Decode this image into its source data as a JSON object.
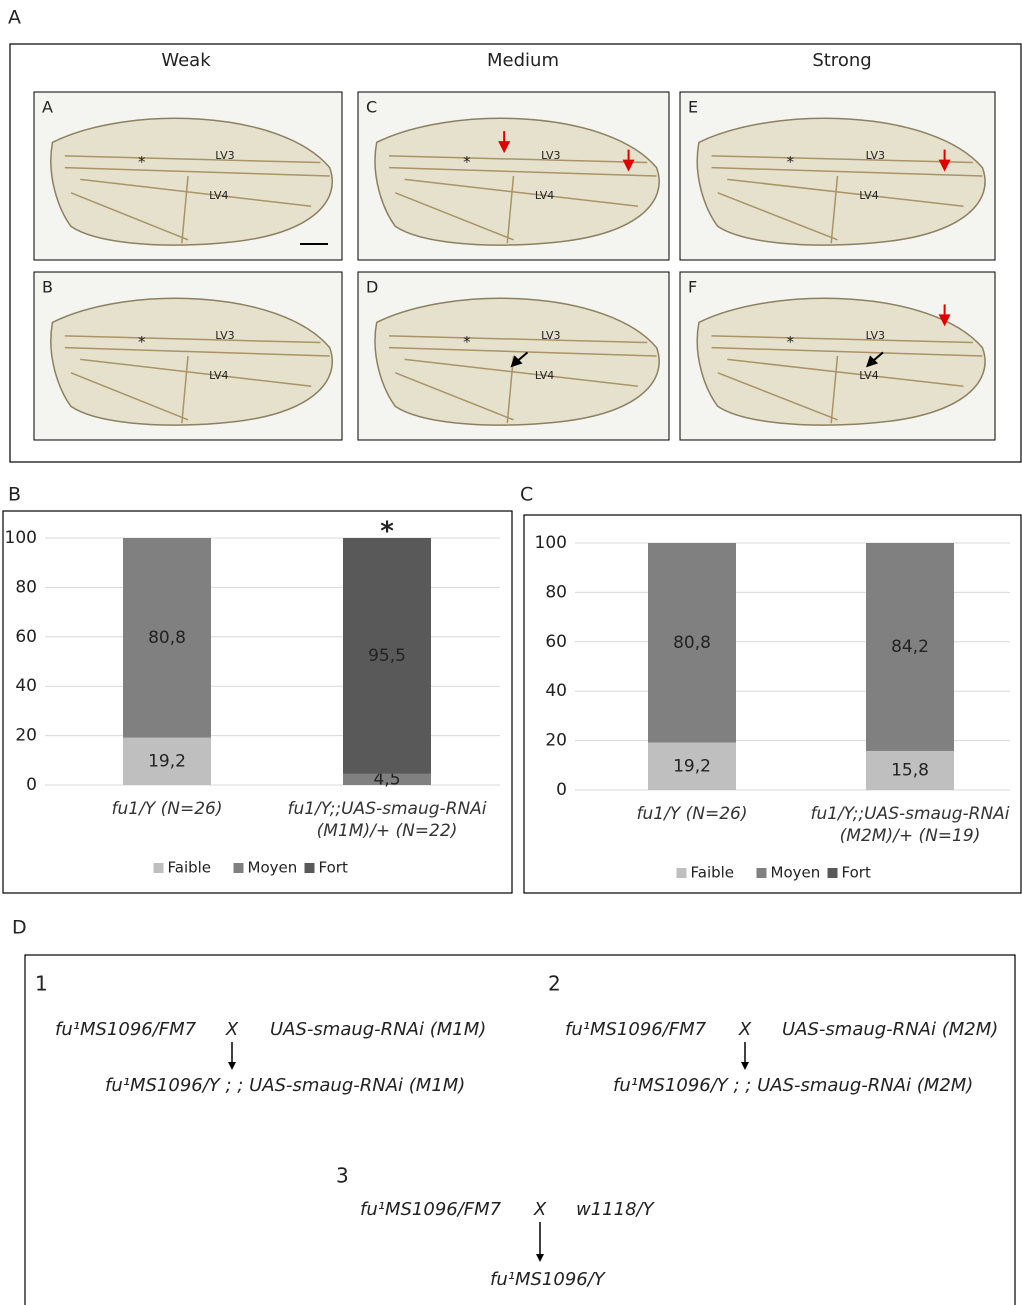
{
  "panel_labels": [
    "A",
    "B",
    "C",
    "D"
  ],
  "panel_a": {
    "columns": [
      "Weak",
      "Medium",
      "Strong"
    ],
    "images": [
      {
        "letter": "A",
        "marker": "*",
        "veins": [
          "LV3",
          "LV4"
        ]
      },
      {
        "letter": "B",
        "marker": "*",
        "veins": [
          "LV3",
          "LV4"
        ]
      },
      {
        "letter": "C",
        "marker": "*",
        "veins": [
          "LV3",
          "LV4"
        ]
      },
      {
        "letter": "D",
        "marker": "*",
        "veins": [
          "LV3",
          "LV4"
        ]
      },
      {
        "letter": "E",
        "marker": "*",
        "veins": [
          "LV3",
          "LV4"
        ]
      },
      {
        "letter": "F",
        "marker": "*",
        "veins": [
          "LV3",
          "LV4"
        ]
      }
    ]
  },
  "chart_data": [
    {
      "type": "bar",
      "stacked": true,
      "annotation": "*",
      "categories": [
        "fu1/Y (N=26)",
        "fu1/Y;;UAS-smaug-RNAi (M1M)/+ (N=22)"
      ],
      "series": [
        {
          "name": "Faible",
          "color": "#bfbfbf",
          "values": [
            19.2,
            null
          ],
          "value_labels": [
            "19,2",
            null
          ]
        },
        {
          "name": "Moyen",
          "color": "#808080",
          "values": [
            80.8,
            4.5
          ],
          "value_labels": [
            "80,8",
            "4,5"
          ]
        },
        {
          "name": "Fort",
          "color": "#595959",
          "values": [
            null,
            95.5
          ],
          "value_labels": [
            null,
            "95,5"
          ]
        }
      ],
      "ylim": [
        0,
        100
      ],
      "yticks": [
        0,
        20,
        40,
        60,
        80,
        100
      ],
      "grid": true,
      "legend": "bottom"
    },
    {
      "type": "bar",
      "stacked": true,
      "categories": [
        "fu1/Y (N=26)",
        "fu1/Y;;UAS-smaug-RNAi (M2M)/+ (N=19)"
      ],
      "series": [
        {
          "name": "Faible",
          "color": "#bfbfbf",
          "values": [
            19.2,
            15.8
          ],
          "value_labels": [
            "19,2",
            "15,8"
          ]
        },
        {
          "name": "Moyen",
          "color": "#808080",
          "values": [
            80.8,
            84.2
          ],
          "value_labels": [
            "80,8",
            "84,2"
          ]
        },
        {
          "name": "Fort",
          "color": "#595959",
          "values": [
            null,
            null
          ],
          "value_labels": [
            null,
            null
          ]
        }
      ],
      "ylim": [
        0,
        100
      ],
      "yticks": [
        0,
        20,
        40,
        60,
        80,
        100
      ],
      "grid": true,
      "legend": "bottom"
    }
  ],
  "panel_d": {
    "crosses": [
      {
        "number": "1",
        "female": "fu¹MS1096/FM7",
        "symbol": "X",
        "male": "UAS-smaug-RNAi (M1M)",
        "offspring": "fu¹MS1096/Y ; ; UAS-smaug-RNAi (M1M)"
      },
      {
        "number": "2",
        "female": "fu¹MS1096/FM7",
        "symbol": "X",
        "male": "UAS-smaug-RNAi (M2M)",
        "offspring": "fu¹MS1096/Y ; ; UAS-smaug-RNAi (M2M)"
      },
      {
        "number": "3",
        "female": "fu¹MS1096/FM7",
        "symbol": "X",
        "male": "w1118/Y",
        "offspring": "fu¹MS1096/Y"
      }
    ]
  }
}
